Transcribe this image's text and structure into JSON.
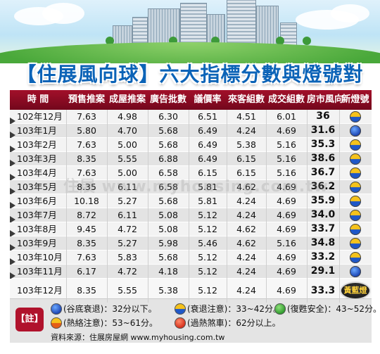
{
  "title": "【住展風向球】六大指標分數與燈號對照表",
  "header": [
    "時  間",
    "預售推案",
    "成屋推案",
    "廣告批數",
    "議價率",
    "來客組數",
    "成交組數",
    "房市風向",
    "新燈號"
  ],
  "rows": [
    {
      "time": "102年12月",
      "presale": "7.63",
      "existing": "4.98",
      "ads": "6.30",
      "bargain": "6.51",
      "visitors": "4.51",
      "deals": "6.01",
      "direction": "36",
      "light": "yellow-blue"
    },
    {
      "time": "103年1月",
      "presale": "5.80",
      "existing": "4.70",
      "ads": "5.68",
      "bargain": "6.49",
      "visitors": "4.24",
      "deals": "4.69",
      "direction": "31.6",
      "light": "blue"
    },
    {
      "time": "103年2月",
      "presale": "7.63",
      "existing": "5.00",
      "ads": "5.68",
      "bargain": "6.49",
      "visitors": "5.38",
      "deals": "5.16",
      "direction": "35.3",
      "light": "yellow-blue"
    },
    {
      "time": "103年3月",
      "presale": "8.35",
      "existing": "5.55",
      "ads": "6.88",
      "bargain": "6.49",
      "visitors": "6.15",
      "deals": "5.16",
      "direction": "38.6",
      "light": "yellow-blue"
    },
    {
      "time": "103年4月",
      "presale": "7.63",
      "existing": "5.00",
      "ads": "6.58",
      "bargain": "6.15",
      "visitors": "6.15",
      "deals": "5.16",
      "direction": "36.7",
      "light": "yellow-blue"
    },
    {
      "time": "103年5月",
      "presale": "8.35",
      "existing": "6.11",
      "ads": "6.58",
      "bargain": "5.81",
      "visitors": "4.62",
      "deals": "4.69",
      "direction": "36.2",
      "light": "yellow-blue"
    },
    {
      "time": "103年6月",
      "presale": "10.18",
      "existing": "5.27",
      "ads": "5.68",
      "bargain": "5.81",
      "visitors": "4.24",
      "deals": "4.69",
      "direction": "35.9",
      "light": "yellow-blue"
    },
    {
      "time": "103年7月",
      "presale": "8.72",
      "existing": "6.11",
      "ads": "5.08",
      "bargain": "5.12",
      "visitors": "4.24",
      "deals": "4.69",
      "direction": "34.0",
      "light": "yellow-blue"
    },
    {
      "time": "103年8月",
      "presale": "9.45",
      "existing": "4.72",
      "ads": "5.08",
      "bargain": "5.12",
      "visitors": "4.62",
      "deals": "4.69",
      "direction": "33.7",
      "light": "yellow-blue"
    },
    {
      "time": "103年9月",
      "presale": "8.35",
      "existing": "5.27",
      "ads": "5.98",
      "bargain": "5.46",
      "visitors": "4.62",
      "deals": "5.16",
      "direction": "34.8",
      "light": "yellow-blue"
    },
    {
      "time": "103年10月",
      "presale": "7.63",
      "existing": "5.83",
      "ads": "5.68",
      "bargain": "5.12",
      "visitors": "4.24",
      "deals": "4.69",
      "direction": "33.2",
      "light": "yellow-blue"
    },
    {
      "time": "103年11月",
      "presale": "6.17",
      "existing": "4.72",
      "ads": "4.18",
      "bargain": "5.12",
      "visitors": "4.24",
      "deals": "4.69",
      "direction": "29.1",
      "light": "blue"
    },
    {
      "time": "103年12月",
      "presale": "8.35",
      "existing": "5.55",
      "ads": "5.38",
      "bargain": "5.12",
      "visitors": "4.24",
      "deals": "4.69",
      "direction": "33.3",
      "light": "黃藍燈"
    }
  ],
  "watermark": "住展 www.myhousing.com.tw",
  "legend": {
    "note": "【註】",
    "items": [
      {
        "color": "blue",
        "text": "(谷底衰退)：32分以下。"
      },
      {
        "color": "yellow-blue",
        "text": "(衰退注意)：33~42分。"
      },
      {
        "color": "green",
        "text": "(復甦安全)：43~52分。"
      },
      {
        "color": "yellow-red",
        "text": "(熱絡注意)：53~61分。"
      },
      {
        "color": "red",
        "text": "(過熱煞車)：62分以上。"
      }
    ],
    "source": "資料來源：住展房屋網 www.myhousing.com.tw"
  },
  "colors": {
    "header_bg": "#8e0b24",
    "title": "#0b63b7",
    "yellow": "#f5c21b",
    "blue": "#1f58c8",
    "green": "#2f9b2d",
    "orange": "#e45d16",
    "red": "#d6301c"
  },
  "chart_data": {
    "type": "table",
    "title": "【住展風向球】六大指標分數與燈號對照表",
    "columns": [
      "時  間",
      "預售推案",
      "成屋推案",
      "廣告批數",
      "議價率",
      "來客組數",
      "成交組數",
      "房市風向",
      "新燈號"
    ],
    "categories": [
      "102年12月",
      "103年1月",
      "103年2月",
      "103年3月",
      "103年4月",
      "103年5月",
      "103年6月",
      "103年7月",
      "103年8月",
      "103年9月",
      "103年10月",
      "103年11月",
      "103年12月"
    ],
    "series": [
      {
        "name": "預售推案",
        "values": [
          7.63,
          5.8,
          7.63,
          8.35,
          7.63,
          8.35,
          10.18,
          8.72,
          9.45,
          8.35,
          7.63,
          6.17,
          8.35
        ]
      },
      {
        "name": "成屋推案",
        "values": [
          4.98,
          4.7,
          5.0,
          5.55,
          5.0,
          6.11,
          5.27,
          6.11,
          4.72,
          5.27,
          5.83,
          4.72,
          5.55
        ]
      },
      {
        "name": "廣告批數",
        "values": [
          6.3,
          5.68,
          5.68,
          6.88,
          6.58,
          6.58,
          5.68,
          5.08,
          5.08,
          5.98,
          5.68,
          4.18,
          5.38
        ]
      },
      {
        "name": "議價率",
        "values": [
          6.51,
          6.49,
          6.49,
          6.49,
          6.15,
          5.81,
          5.81,
          5.12,
          5.12,
          5.46,
          5.12,
          5.12,
          5.12
        ]
      },
      {
        "name": "來客組數",
        "values": [
          4.51,
          4.24,
          5.38,
          6.15,
          6.15,
          4.62,
          4.24,
          4.24,
          4.62,
          4.62,
          4.24,
          4.24,
          4.24
        ]
      },
      {
        "name": "成交組數",
        "values": [
          6.01,
          4.69,
          5.16,
          5.16,
          5.16,
          4.69,
          4.69,
          4.69,
          4.69,
          5.16,
          4.69,
          4.69,
          4.69
        ]
      },
      {
        "name": "房市風向",
        "values": [
          36,
          31.6,
          35.3,
          38.6,
          36.7,
          36.2,
          35.9,
          34.0,
          33.7,
          34.8,
          33.2,
          29.1,
          33.3
        ]
      }
    ]
  }
}
